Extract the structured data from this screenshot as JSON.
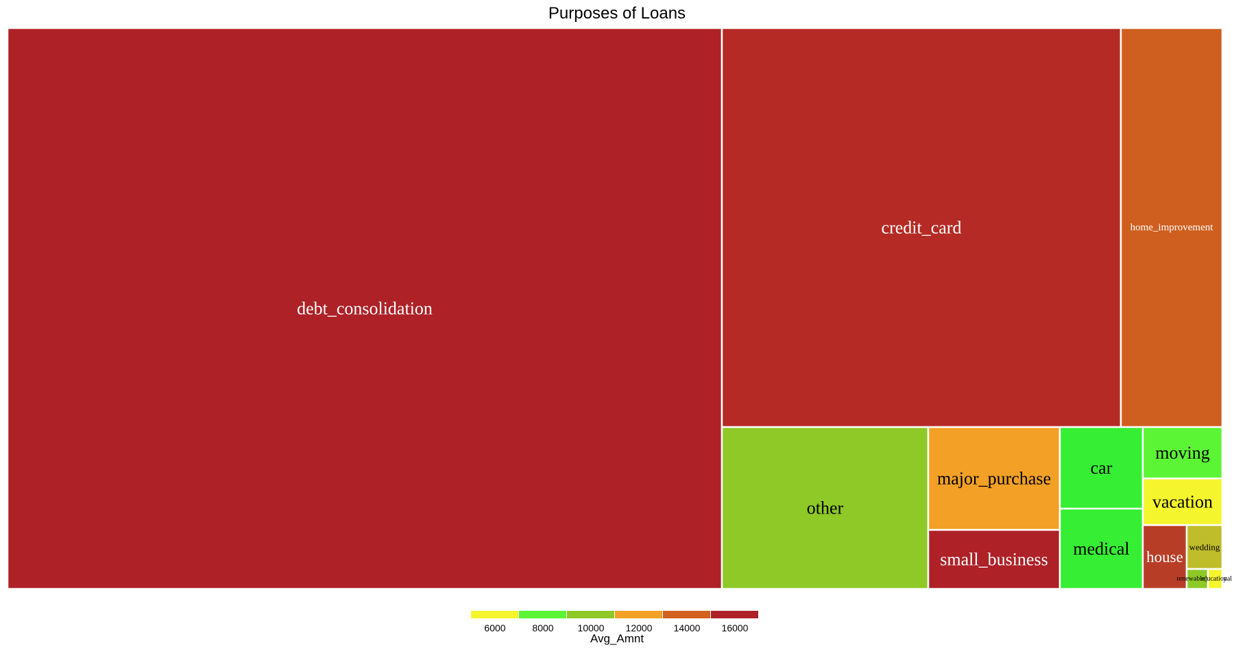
{
  "chart_data": {
    "type": "treemap",
    "title": "Purposes of Loans",
    "color_variable": "Avg_Amnt",
    "legend": {
      "title": "Avg_Amnt",
      "ticks": [
        "6000",
        "8000",
        "10000",
        "12000",
        "14000",
        "16000"
      ],
      "colors": [
        "#f5f52e",
        "#5cf535",
        "#8ec927",
        "#f2a026",
        "#d2611f",
        "#ad2127"
      ],
      "placement": "bottom"
    },
    "tiles": [
      {
        "label": "debt_consolidation",
        "color": "#ad2127",
        "text_color": "#ffffff"
      },
      {
        "label": "credit_card",
        "color": "#b52a25",
        "text_color": "#ffffff"
      },
      {
        "label": "home_improvement",
        "color": "#cf5f1f",
        "text_color": "#ffffff"
      },
      {
        "label": "other",
        "color": "#8ec927",
        "text_color": "#000000"
      },
      {
        "label": "major_purchase",
        "color": "#f2a026",
        "text_color": "#000000"
      },
      {
        "label": "small_business",
        "color": "#ad2127",
        "text_color": "#ffffff"
      },
      {
        "label": "car",
        "color": "#36ee33",
        "text_color": "#000000"
      },
      {
        "label": "medical",
        "color": "#36ee33",
        "text_color": "#000000"
      },
      {
        "label": "moving",
        "color": "#5cf535",
        "text_color": "#000000"
      },
      {
        "label": "vacation",
        "color": "#f5f52e",
        "text_color": "#000000"
      },
      {
        "label": "house",
        "color": "#b83d26",
        "text_color": "#ffffff"
      },
      {
        "label": "wedding",
        "color": "#bfbd2a",
        "text_color": "#000000"
      },
      {
        "label": "renewable_energy",
        "color": "#8ec927",
        "text_color": "#000000"
      },
      {
        "label": "educational",
        "color": "#f5f52e",
        "text_color": "#000000"
      }
    ]
  }
}
